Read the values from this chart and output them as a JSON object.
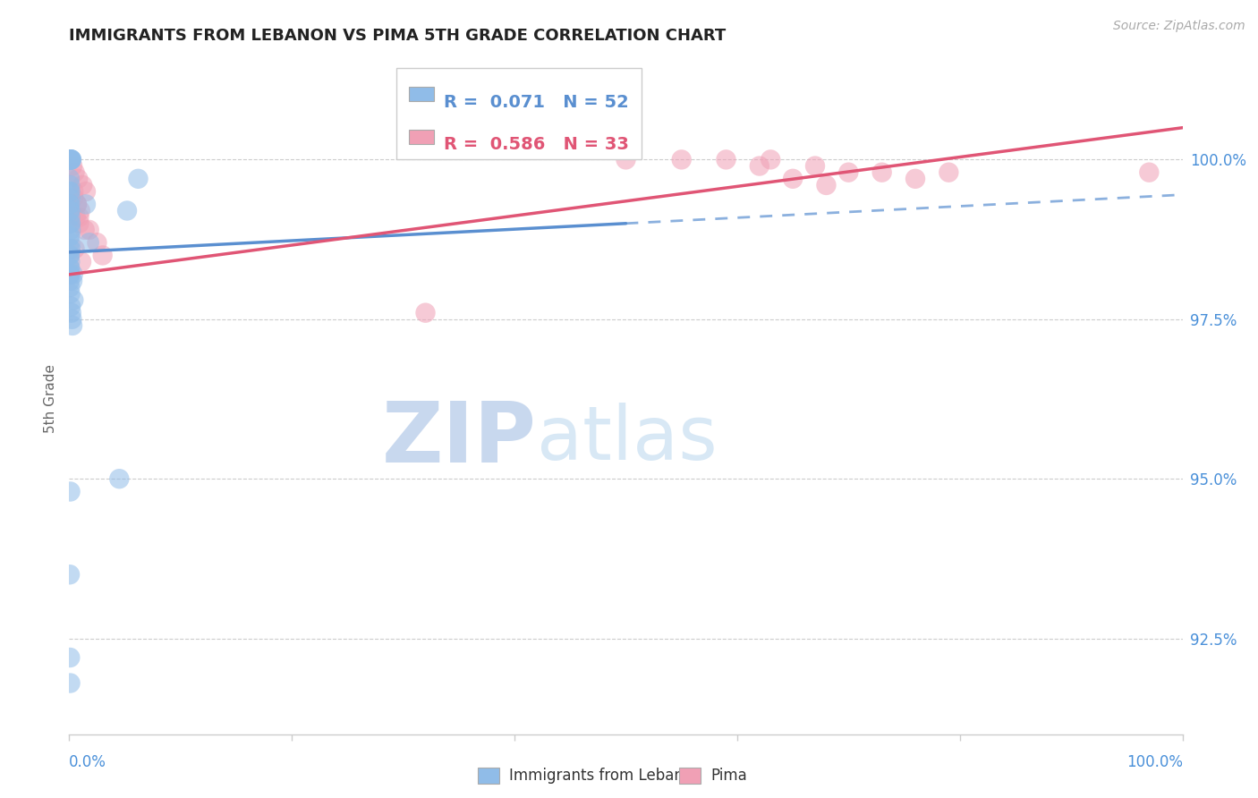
{
  "title": "IMMIGRANTS FROM LEBANON VS PIMA 5TH GRADE CORRELATION CHART",
  "source": "Source: ZipAtlas.com",
  "ylabel": "5th Grade",
  "ytick_labels": [
    "92.5%",
    "95.0%",
    "97.5%",
    "100.0%"
  ],
  "ytick_values": [
    92.5,
    95.0,
    97.5,
    100.0
  ],
  "xlim": [
    0.0,
    100.0
  ],
  "ylim": [
    91.0,
    101.5
  ],
  "legend_r_blue": "0.071",
  "legend_n_blue": "52",
  "legend_r_pink": "0.586",
  "legend_n_pink": "33",
  "legend_label_blue": "Immigrants from Lebanon",
  "legend_label_pink": "Pima",
  "blue_color": "#90bce8",
  "pink_color": "#f0a0b5",
  "blue_line_color": "#5a8fd0",
  "pink_line_color": "#e05575",
  "title_color": "#222222",
  "axis_label_color": "#666666",
  "tick_color": "#4a90d9",
  "source_color": "#aaaaaa",
  "watermark_zip_color": "#c8d8ee",
  "watermark_atlas_color": "#d8e8f5",
  "blue_scatter_x": [
    0.05,
    0.08,
    0.1,
    0.12,
    0.15,
    0.18,
    0.2,
    0.22,
    0.05,
    0.08,
    0.1,
    0.12,
    0.05,
    0.07,
    0.1,
    0.13,
    0.15,
    0.05,
    0.08,
    0.1,
    0.05,
    0.08,
    0.05,
    0.07,
    0.05,
    0.08,
    0.1,
    0.05,
    0.06,
    0.08,
    0.1,
    0.12,
    0.15,
    0.05,
    0.08,
    0.1,
    1.5,
    1.8,
    0.3,
    0.4,
    0.15,
    0.2,
    0.25,
    0.3,
    4.5,
    5.2,
    0.35,
    0.1,
    0.06,
    0.08,
    6.2,
    0.1
  ],
  "blue_scatter_y": [
    100.0,
    100.0,
    100.0,
    100.0,
    100.0,
    100.0,
    100.0,
    100.0,
    99.7,
    99.6,
    99.5,
    99.4,
    99.3,
    99.2,
    99.1,
    99.0,
    98.9,
    98.8,
    98.7,
    98.6,
    98.5,
    98.4,
    98.3,
    98.2,
    98.1,
    98.0,
    97.9,
    99.5,
    99.3,
    99.2,
    99.0,
    98.8,
    98.6,
    98.5,
    98.3,
    98.2,
    99.3,
    98.7,
    98.1,
    97.8,
    97.7,
    97.6,
    97.5,
    97.4,
    95.0,
    99.2,
    98.2,
    94.8,
    93.5,
    92.2,
    99.7,
    91.8
  ],
  "pink_scatter_x": [
    0.3,
    0.5,
    0.8,
    1.2,
    1.5,
    0.4,
    0.7,
    1.0,
    0.6,
    0.9,
    1.8,
    2.5,
    3.0,
    0.5,
    1.1,
    50.0,
    59.0,
    63.0,
    67.0,
    70.0,
    73.0,
    76.0,
    79.0,
    55.0,
    62.0,
    65.0,
    68.0,
    0.4,
    0.7,
    0.9,
    1.4,
    97.0,
    32.0
  ],
  "pink_scatter_y": [
    99.9,
    99.8,
    99.7,
    99.6,
    99.5,
    99.4,
    99.3,
    99.2,
    99.1,
    99.0,
    98.9,
    98.7,
    98.5,
    98.6,
    98.4,
    100.0,
    100.0,
    100.0,
    99.9,
    99.8,
    99.8,
    99.7,
    99.8,
    100.0,
    99.9,
    99.7,
    99.6,
    99.5,
    99.3,
    99.1,
    98.9,
    99.8,
    97.6
  ],
  "blue_trend_x0": 0.0,
  "blue_trend_y0": 98.55,
  "blue_trend_x1": 50.0,
  "blue_trend_y1": 99.0,
  "blue_dashed_x0": 50.0,
  "blue_dashed_y0": 99.0,
  "blue_dashed_x1": 100.0,
  "blue_dashed_y1": 99.45,
  "pink_trend_x0": 0.0,
  "pink_trend_y0": 98.2,
  "pink_trend_x1": 100.0,
  "pink_trend_y1": 100.5
}
